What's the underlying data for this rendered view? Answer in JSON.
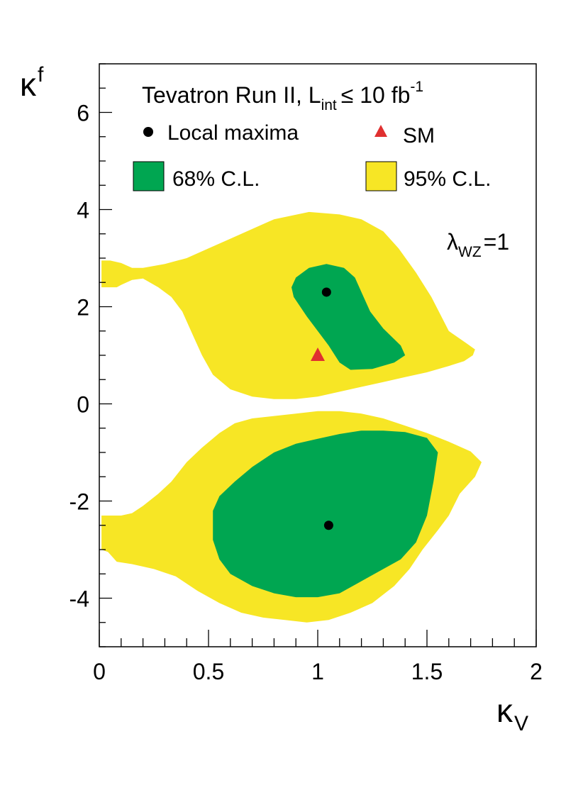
{
  "chart_data": {
    "type": "contour",
    "title": "Tevatron Run II, L",
    "title_sub": "int",
    "title_rel": "≤ 10 fb",
    "title_sup": "-1",
    "xlabel": "κ",
    "xlabel_sub": "V",
    "ylabel": "κ",
    "ylabel_sub": "f",
    "xlim": [
      0,
      2
    ],
    "ylim": [
      -5,
      7
    ],
    "xticks": [
      0,
      0.5,
      1,
      1.5,
      2
    ],
    "xtick_labels": [
      "0",
      "0.5",
      "1",
      "1.5",
      "2"
    ],
    "yticks": [
      -4,
      -2,
      0,
      2,
      4,
      6
    ],
    "ytick_labels": [
      "-4",
      "-2",
      "0",
      "2",
      "4",
      "6"
    ],
    "annotation": {
      "text": "λ",
      "sub": "WZ",
      "rest": "=1"
    },
    "legend": {
      "placement": "top",
      "local_maxima": "Local maxima",
      "sm": "SM",
      "cl68": "68% C.L.",
      "cl95": "95% C.L."
    },
    "colors": {
      "cl68": "#00a651",
      "cl95": "#f7e625",
      "sm": "#e03030",
      "maxima": "#000000"
    },
    "regions": [
      {
        "level": "95% C.L.",
        "points": [
          [
            0.01,
            2.4
          ],
          [
            0.04,
            2.4
          ],
          [
            0.08,
            2.4
          ],
          [
            0.1,
            2.45
          ],
          [
            0.15,
            2.55
          ],
          [
            0.2,
            2.58
          ],
          [
            0.27,
            2.4
          ],
          [
            0.33,
            2.2
          ],
          [
            0.38,
            1.9
          ],
          [
            0.43,
            1.4
          ],
          [
            0.47,
            1.0
          ],
          [
            0.52,
            0.6
          ],
          [
            0.6,
            0.3
          ],
          [
            0.7,
            0.15
          ],
          [
            0.8,
            0.1
          ],
          [
            0.9,
            0.1
          ],
          [
            1.0,
            0.15
          ],
          [
            1.1,
            0.25
          ],
          [
            1.2,
            0.35
          ],
          [
            1.3,
            0.45
          ],
          [
            1.4,
            0.55
          ],
          [
            1.5,
            0.65
          ],
          [
            1.6,
            0.78
          ],
          [
            1.67,
            0.88
          ],
          [
            1.71,
            1.0
          ],
          [
            1.72,
            1.12
          ],
          [
            1.68,
            1.25
          ],
          [
            1.6,
            1.5
          ],
          [
            1.52,
            2.2
          ],
          [
            1.45,
            2.7
          ],
          [
            1.37,
            3.2
          ],
          [
            1.3,
            3.55
          ],
          [
            1.2,
            3.8
          ],
          [
            1.1,
            3.9
          ],
          [
            0.96,
            3.95
          ],
          [
            0.8,
            3.8
          ],
          [
            0.7,
            3.6
          ],
          [
            0.6,
            3.4
          ],
          [
            0.5,
            3.2
          ],
          [
            0.4,
            3.0
          ],
          [
            0.3,
            2.88
          ],
          [
            0.2,
            2.8
          ],
          [
            0.15,
            2.8
          ],
          [
            0.1,
            2.9
          ],
          [
            0.05,
            2.95
          ],
          [
            0.01,
            2.95
          ]
        ]
      },
      {
        "level": "68% C.L.",
        "points": [
          [
            0.89,
            2.2
          ],
          [
            0.88,
            2.4
          ],
          [
            0.9,
            2.6
          ],
          [
            0.96,
            2.8
          ],
          [
            1.04,
            2.88
          ],
          [
            1.12,
            2.8
          ],
          [
            1.17,
            2.6
          ],
          [
            1.2,
            2.3
          ],
          [
            1.24,
            1.9
          ],
          [
            1.3,
            1.55
          ],
          [
            1.38,
            1.2
          ],
          [
            1.4,
            1.0
          ],
          [
            1.35,
            0.85
          ],
          [
            1.25,
            0.72
          ],
          [
            1.15,
            0.7
          ],
          [
            1.1,
            0.85
          ],
          [
            1.05,
            1.2
          ],
          [
            1.0,
            1.5
          ],
          [
            0.95,
            1.8
          ]
        ]
      },
      {
        "level": "95% C.L.",
        "points": [
          [
            0.01,
            -2.3
          ],
          [
            0.06,
            -2.3
          ],
          [
            0.1,
            -2.3
          ],
          [
            0.15,
            -2.25
          ],
          [
            0.2,
            -2.1
          ],
          [
            0.27,
            -1.85
          ],
          [
            0.33,
            -1.6
          ],
          [
            0.4,
            -1.2
          ],
          [
            0.47,
            -0.9
          ],
          [
            0.55,
            -0.6
          ],
          [
            0.62,
            -0.4
          ],
          [
            0.7,
            -0.3
          ],
          [
            0.8,
            -0.25
          ],
          [
            0.9,
            -0.2
          ],
          [
            1.0,
            -0.15
          ],
          [
            1.1,
            -0.15
          ],
          [
            1.2,
            -0.2
          ],
          [
            1.3,
            -0.3
          ],
          [
            1.4,
            -0.45
          ],
          [
            1.5,
            -0.6
          ],
          [
            1.6,
            -0.78
          ],
          [
            1.7,
            -0.98
          ],
          [
            1.75,
            -1.2
          ],
          [
            1.72,
            -1.5
          ],
          [
            1.65,
            -1.85
          ],
          [
            1.6,
            -2.3
          ],
          [
            1.55,
            -2.6
          ],
          [
            1.48,
            -3.0
          ],
          [
            1.42,
            -3.4
          ],
          [
            1.35,
            -3.75
          ],
          [
            1.25,
            -4.1
          ],
          [
            1.15,
            -4.3
          ],
          [
            1.05,
            -4.45
          ],
          [
            0.95,
            -4.5
          ],
          [
            0.85,
            -4.45
          ],
          [
            0.75,
            -4.4
          ],
          [
            0.65,
            -4.3
          ],
          [
            0.55,
            -4.1
          ],
          [
            0.45,
            -3.85
          ],
          [
            0.35,
            -3.55
          ],
          [
            0.25,
            -3.4
          ],
          [
            0.15,
            -3.3
          ],
          [
            0.08,
            -3.25
          ],
          [
            0.04,
            -3.05
          ],
          [
            0.01,
            -3.0
          ]
        ]
      },
      {
        "level": "68% C.L.",
        "points": [
          [
            0.52,
            -2.2
          ],
          [
            0.55,
            -1.9
          ],
          [
            0.62,
            -1.6
          ],
          [
            0.7,
            -1.3
          ],
          [
            0.8,
            -1.0
          ],
          [
            0.9,
            -0.82
          ],
          [
            1.0,
            -0.72
          ],
          [
            1.1,
            -0.62
          ],
          [
            1.2,
            -0.55
          ],
          [
            1.3,
            -0.55
          ],
          [
            1.4,
            -0.58
          ],
          [
            1.5,
            -0.7
          ],
          [
            1.55,
            -1.0
          ],
          [
            1.53,
            -1.6
          ],
          [
            1.5,
            -2.3
          ],
          [
            1.45,
            -2.85
          ],
          [
            1.38,
            -3.2
          ],
          [
            1.3,
            -3.4
          ],
          [
            1.2,
            -3.65
          ],
          [
            1.1,
            -3.9
          ],
          [
            1.0,
            -3.98
          ],
          [
            0.9,
            -3.98
          ],
          [
            0.8,
            -3.9
          ],
          [
            0.7,
            -3.75
          ],
          [
            0.6,
            -3.5
          ],
          [
            0.55,
            -3.2
          ],
          [
            0.52,
            -2.8
          ],
          [
            0.52,
            -2.5
          ]
        ]
      }
    ],
    "local_maxima": [
      [
        1.04,
        2.3
      ],
      [
        1.05,
        -2.5
      ]
    ],
    "sm_point": [
      1.0,
      1.0
    ]
  }
}
